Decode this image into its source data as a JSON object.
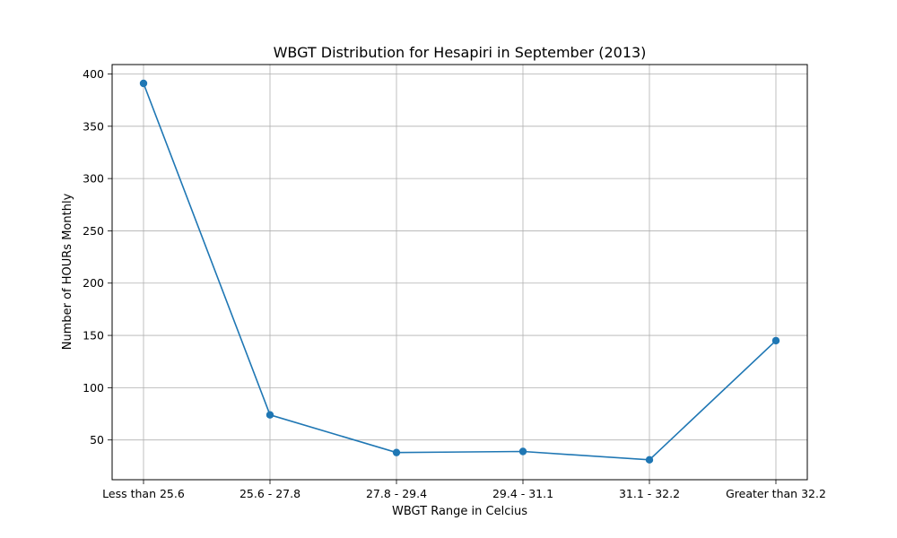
{
  "chart_data": {
    "type": "line",
    "title": "WBGT Distribution for Hesapiri in September (2013)",
    "xlabel": "WBGT Range in Celcius",
    "ylabel": "Number of HOURs Monthly",
    "categories": [
      "Less than 25.6",
      "25.6 - 27.8",
      "27.8 - 29.4",
      "29.4 - 31.1",
      "31.1 - 32.2",
      "Greater than 32.2"
    ],
    "series": [
      {
        "values": [
          391,
          74,
          38,
          39,
          31,
          145
        ]
      }
    ],
    "ylim": [
      12,
      409
    ],
    "yticks": [
      50,
      100,
      150,
      200,
      250,
      300,
      350,
      400
    ],
    "grid": true,
    "line_color": "#1f77b4"
  }
}
